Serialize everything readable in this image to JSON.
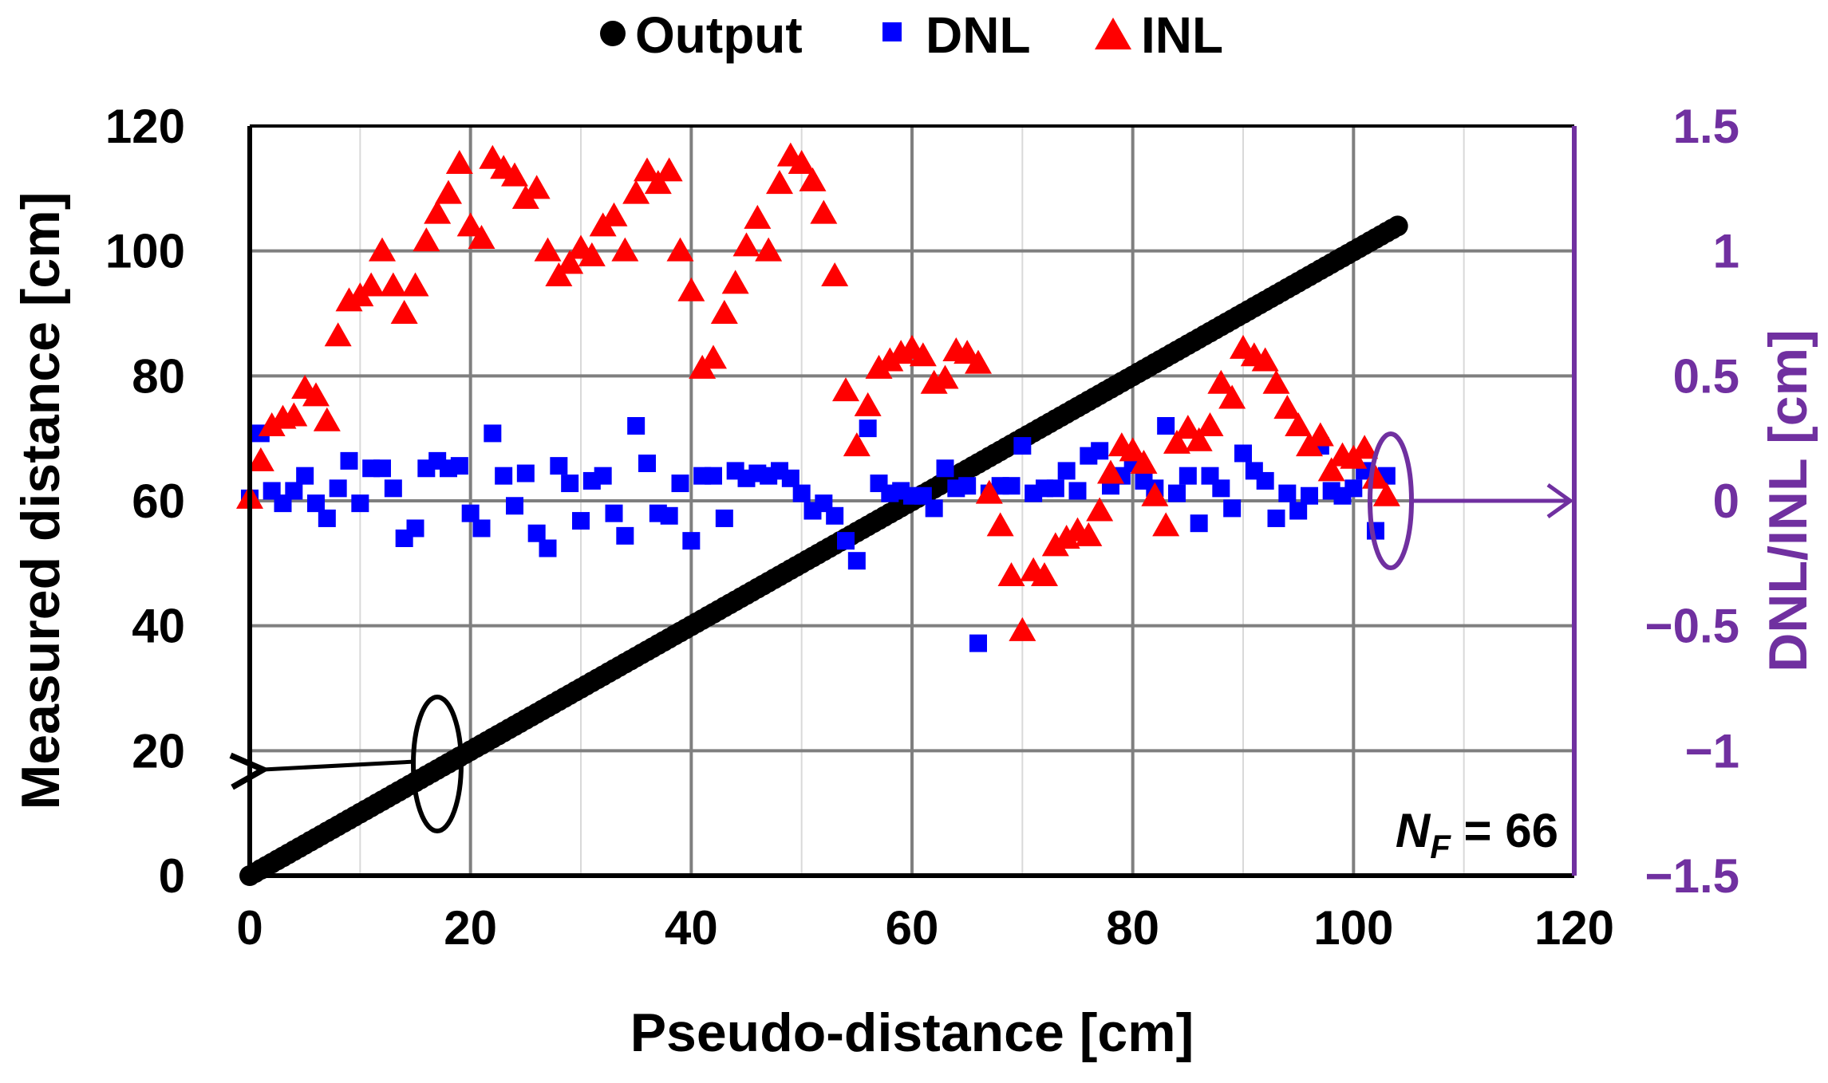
{
  "chart_data": {
    "type": "scatter",
    "xlabel": "Pseudo-distance [cm]",
    "ylabel": "Measured distance [cm]",
    "y2label": "DNL/INL [cm]",
    "xlim": [
      0,
      120
    ],
    "ylim": [
      0,
      120
    ],
    "y2lim": [
      -1.5,
      1.5
    ],
    "x_ticks": [
      "0",
      "20",
      "40",
      "60",
      "80",
      "100",
      "120"
    ],
    "y_ticks": [
      "0",
      "20",
      "40",
      "60",
      "80",
      "100",
      "120"
    ],
    "y2_ticks": [
      "−1.5",
      "−1",
      "−0.5",
      "0",
      "0.5",
      "1",
      "1.5"
    ],
    "grid": true,
    "legend_position": "top",
    "annotation": {
      "main": "N",
      "sub": "F",
      "rest": " = 66"
    },
    "colors": {
      "output": "#000000",
      "dnl": "#0000ff",
      "inl": "#ff0000",
      "right_axis": "#7030a0"
    },
    "series": [
      {
        "name": "Output",
        "axis": "left",
        "marker": "circle",
        "x_start": 0,
        "x_end": 104,
        "y_start": 0,
        "y_end": 104
      },
      {
        "name": "DNL",
        "axis": "right",
        "marker": "square",
        "points": [
          [
            0,
            0.01
          ],
          [
            1,
            0.27
          ],
          [
            2,
            0.04
          ],
          [
            3,
            -0.01
          ],
          [
            4,
            0.04
          ],
          [
            5,
            0.1
          ],
          [
            6,
            -0.01
          ],
          [
            7,
            -0.07
          ],
          [
            8,
            0.05
          ],
          [
            9,
            0.16
          ],
          [
            10,
            -0.01
          ],
          [
            11,
            0.13
          ],
          [
            12,
            0.13
          ],
          [
            13,
            0.05
          ],
          [
            14,
            -0.15
          ],
          [
            15,
            -0.11
          ],
          [
            16,
            0.13
          ],
          [
            17,
            0.16
          ],
          [
            18,
            0.13
          ],
          [
            19,
            0.14
          ],
          [
            20,
            -0.05
          ],
          [
            21,
            -0.11
          ],
          [
            22,
            0.27
          ],
          [
            23,
            0.1
          ],
          [
            24,
            -0.02
          ],
          [
            25,
            0.11
          ],
          [
            26,
            -0.13
          ],
          [
            27,
            -0.19
          ],
          [
            28,
            0.14
          ],
          [
            29,
            0.07
          ],
          [
            30,
            -0.08
          ],
          [
            31,
            0.08
          ],
          [
            32,
            0.1
          ],
          [
            33,
            -0.05
          ],
          [
            34,
            -0.14
          ],
          [
            35,
            0.3
          ],
          [
            36,
            0.15
          ],
          [
            37,
            -0.05
          ],
          [
            38,
            -0.06
          ],
          [
            39,
            0.07
          ],
          [
            40,
            -0.16
          ],
          [
            41,
            0.1
          ],
          [
            42,
            0.1
          ],
          [
            43,
            -0.07
          ],
          [
            44,
            0.12
          ],
          [
            45,
            0.09
          ],
          [
            46,
            0.11
          ],
          [
            47,
            0.1
          ],
          [
            48,
            0.12
          ],
          [
            49,
            0.09
          ],
          [
            50,
            0.03
          ],
          [
            51,
            -0.04
          ],
          [
            52,
            -0.01
          ],
          [
            53,
            -0.06
          ],
          [
            54,
            -0.16
          ],
          [
            55,
            -0.24
          ],
          [
            56,
            0.29
          ],
          [
            57,
            0.07
          ],
          [
            58,
            0.03
          ],
          [
            59,
            0.04
          ],
          [
            60,
            0.02
          ],
          [
            61,
            0.02
          ],
          [
            62,
            -0.03
          ],
          [
            63,
            0.13
          ],
          [
            64,
            0.05
          ],
          [
            65,
            0.06
          ],
          [
            66,
            -0.57
          ],
          [
            67,
            0.03
          ],
          [
            68,
            0.06
          ],
          [
            69,
            0.06
          ],
          [
            70,
            0.22
          ],
          [
            71,
            0.03
          ],
          [
            72,
            0.05
          ],
          [
            73,
            0.05
          ],
          [
            74,
            0.12
          ],
          [
            75,
            0.04
          ],
          [
            76,
            0.18
          ],
          [
            77,
            0.2
          ],
          [
            78,
            0.06
          ],
          [
            79,
            0.1
          ],
          [
            80,
            0.15
          ],
          [
            81,
            0.08
          ],
          [
            82,
            0.05
          ],
          [
            83,
            0.3
          ],
          [
            84,
            0.03
          ],
          [
            85,
            0.1
          ],
          [
            86,
            -0.09
          ],
          [
            87,
            0.1
          ],
          [
            88,
            0.05
          ],
          [
            89,
            -0.03
          ],
          [
            90,
            0.19
          ],
          [
            91,
            0.12
          ],
          [
            92,
            0.08
          ],
          [
            93,
            -0.07
          ],
          [
            94,
            0.03
          ],
          [
            95,
            -0.04
          ],
          [
            96,
            0.02
          ],
          [
            97,
            0.22
          ],
          [
            98,
            0.04
          ],
          [
            99,
            0.02
          ],
          [
            100,
            0.05
          ],
          [
            101,
            0.12
          ],
          [
            102,
            -0.12
          ],
          [
            103,
            0.1
          ]
        ]
      },
      {
        "name": "INL",
        "axis": "right",
        "marker": "triangle",
        "points": [
          [
            0,
            0.01
          ],
          [
            1,
            0.16
          ],
          [
            2,
            0.3
          ],
          [
            3,
            0.33
          ],
          [
            4,
            0.34
          ],
          [
            5,
            0.45
          ],
          [
            6,
            0.42
          ],
          [
            7,
            0.32
          ],
          [
            8,
            0.66
          ],
          [
            9,
            0.8
          ],
          [
            10,
            0.82
          ],
          [
            11,
            0.86
          ],
          [
            12,
            1.0
          ],
          [
            13,
            0.86
          ],
          [
            14,
            0.75
          ],
          [
            15,
            0.86
          ],
          [
            16,
            1.04
          ],
          [
            17,
            1.15
          ],
          [
            18,
            1.23
          ],
          [
            19,
            1.35
          ],
          [
            20,
            1.1
          ],
          [
            21,
            1.05
          ],
          [
            22,
            1.37
          ],
          [
            23,
            1.33
          ],
          [
            24,
            1.3
          ],
          [
            25,
            1.21
          ],
          [
            26,
            1.25
          ],
          [
            27,
            1.0
          ],
          [
            28,
            0.9
          ],
          [
            29,
            0.95
          ],
          [
            30,
            1.01
          ],
          [
            31,
            0.98
          ],
          [
            32,
            1.1
          ],
          [
            33,
            1.14
          ],
          [
            34,
            1.0
          ],
          [
            35,
            1.23
          ],
          [
            36,
            1.32
          ],
          [
            37,
            1.27
          ],
          [
            38,
            1.32
          ],
          [
            39,
            1.0
          ],
          [
            40,
            0.84
          ],
          [
            41,
            0.53
          ],
          [
            42,
            0.57
          ],
          [
            43,
            0.75
          ],
          [
            44,
            0.87
          ],
          [
            45,
            1.02
          ],
          [
            46,
            1.13
          ],
          [
            47,
            1.0
          ],
          [
            48,
            1.27
          ],
          [
            49,
            1.38
          ],
          [
            50,
            1.35
          ],
          [
            51,
            1.28
          ],
          [
            52,
            1.15
          ],
          [
            53,
            0.9
          ],
          [
            54,
            0.44
          ],
          [
            55,
            0.22
          ],
          [
            56,
            0.38
          ],
          [
            57,
            0.53
          ],
          [
            58,
            0.56
          ],
          [
            59,
            0.59
          ],
          [
            60,
            0.61
          ],
          [
            61,
            0.58
          ],
          [
            62,
            0.47
          ],
          [
            63,
            0.49
          ],
          [
            64,
            0.6
          ],
          [
            65,
            0.59
          ],
          [
            66,
            0.55
          ],
          [
            67,
            0.03
          ],
          [
            68,
            -0.1
          ],
          [
            69,
            -0.3
          ],
          [
            70,
            -0.52
          ],
          [
            71,
            -0.28
          ],
          [
            72,
            -0.3
          ],
          [
            73,
            -0.18
          ],
          [
            74,
            -0.15
          ],
          [
            75,
            -0.12
          ],
          [
            76,
            -0.14
          ],
          [
            77,
            -0.04
          ],
          [
            78,
            0.11
          ],
          [
            79,
            0.22
          ],
          [
            80,
            0.2
          ],
          [
            81,
            0.15
          ],
          [
            82,
            0.02
          ],
          [
            83,
            -0.1
          ],
          [
            84,
            0.23
          ],
          [
            85,
            0.29
          ],
          [
            86,
            0.24
          ],
          [
            87,
            0.3
          ],
          [
            88,
            0.47
          ],
          [
            89,
            0.41
          ],
          [
            90,
            0.61
          ],
          [
            91,
            0.58
          ],
          [
            92,
            0.56
          ],
          [
            93,
            0.47
          ],
          [
            94,
            0.37
          ],
          [
            95,
            0.3
          ],
          [
            96,
            0.22
          ],
          [
            97,
            0.26
          ],
          [
            98,
            0.12
          ],
          [
            99,
            0.18
          ],
          [
            100,
            0.17
          ],
          [
            101,
            0.21
          ],
          [
            102,
            0.09
          ],
          [
            103,
            0.02
          ]
        ]
      }
    ]
  }
}
